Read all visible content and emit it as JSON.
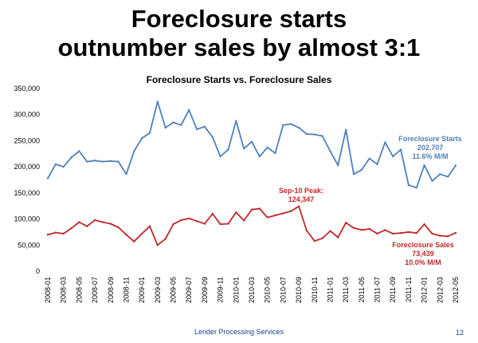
{
  "slide": {
    "title_line1": "Foreclosure starts",
    "title_line2": "outnumber sales by almost 3:1",
    "footer": "Lender Processing Services",
    "page_number": "12"
  },
  "colors": {
    "starts": "#4f81bd",
    "sales": "#c0282a",
    "text": "#000000",
    "footer": "#1f3f8a"
  },
  "chart_data": {
    "type": "line",
    "title": "Foreclosure Starts vs. Foreclosure Sales",
    "xlabel": "",
    "ylabel": "",
    "ylim": [
      0,
      350000
    ],
    "yticks": [
      "0",
      "50,000",
      "100,000",
      "150,000",
      "200,000",
      "250,000",
      "300,000",
      "350,000"
    ],
    "grid": false,
    "legend": "none",
    "x": [
      "2008-01",
      "2008-02",
      "2008-03",
      "2008-04",
      "2008-05",
      "2008-06",
      "2008-07",
      "2008-08",
      "2008-09",
      "2008-10",
      "2008-11",
      "2008-12",
      "2009-01",
      "2009-02",
      "2009-03",
      "2009-04",
      "2009-05",
      "2009-06",
      "2009-07",
      "2009-08",
      "2009-09",
      "2009-10",
      "2009-11",
      "2009-12",
      "2010-01",
      "2010-02",
      "2010-03",
      "2010-04",
      "2010-05",
      "2010-06",
      "2010-07",
      "2010-08",
      "2010-09",
      "2010-10",
      "2010-11",
      "2010-12",
      "2011-01",
      "2011-02",
      "2011-03",
      "2011-04",
      "2011-05",
      "2011-06",
      "2011-07",
      "2011-08",
      "2011-09",
      "2011-10",
      "2011-11",
      "2011-12",
      "2012-01",
      "2012-02",
      "2012-03",
      "2012-04",
      "2012-05"
    ],
    "xtick_labels": [
      "2008-01",
      "2008-03",
      "2008-05",
      "2008-07",
      "2008-09",
      "2008-11",
      "2009-01",
      "2009-03",
      "2009-05",
      "2009-07",
      "2009-09",
      "2009-11",
      "2010-01",
      "2010-03",
      "2010-05",
      "2010-07",
      "2010-09",
      "2010-11",
      "2011-01",
      "2011-03",
      "2011-05",
      "2011-07",
      "2011-09",
      "2011-11",
      "2012-01",
      "2012-03",
      "2012-05"
    ],
    "series": [
      {
        "key": "starts",
        "values": [
          178000,
          205000,
          200000,
          218000,
          230000,
          210000,
          212000,
          210000,
          211000,
          210000,
          186000,
          230000,
          255000,
          265000,
          325000,
          275000,
          285000,
          280000,
          309000,
          272000,
          277000,
          257000,
          220000,
          233000,
          288000,
          235000,
          248000,
          220000,
          237000,
          226000,
          280000,
          282000,
          275000,
          263000,
          262000,
          259000,
          230000,
          203000,
          271000,
          186000,
          194000,
          216000,
          205000,
          247000,
          220000,
          233000,
          165000,
          160000,
          203000,
          173000,
          186000,
          181000,
          202707
        ]
      },
      {
        "key": "sales",
        "values": [
          70000,
          74000,
          72000,
          82000,
          94000,
          86000,
          98000,
          94000,
          91000,
          84000,
          70000,
          57000,
          72000,
          86000,
          50000,
          62000,
          90000,
          98000,
          101000,
          96000,
          91000,
          110000,
          90000,
          91000,
          113000,
          97000,
          118000,
          120000,
          103000,
          107000,
          111000,
          115000,
          124347,
          78000,
          58000,
          63000,
          77000,
          65000,
          93000,
          83000,
          79000,
          81000,
          72000,
          79000,
          72000,
          73000,
          75000,
          73000,
          90000,
          72000,
          68000,
          67000,
          73439
        ]
      }
    ],
    "annotations": {
      "starts": {
        "l1": "Foreclosure Starts",
        "l2": "202,707",
        "l3": "11.6% M/M"
      },
      "peak": {
        "l1": "Sep-10 Peak:",
        "l2": "124,347"
      },
      "sales": {
        "l1": "Foreclosure Sales",
        "l2": "73,439",
        "l3": "10.0% M/M"
      }
    }
  }
}
